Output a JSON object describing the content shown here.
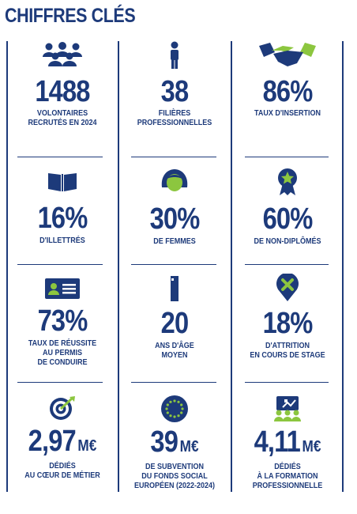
{
  "title": "CHIFFRES CLÉS",
  "colors": {
    "navy": "#1d3a7a",
    "green": "#8cc63f"
  },
  "stats": [
    {
      "value": "1488",
      "unit": "",
      "label": [
        "VOLONTAIRES",
        "RECRUTÉS EN 2024"
      ],
      "icon": "people-group-icon"
    },
    {
      "value": "38",
      "unit": "",
      "label": [
        "FILIÈRES",
        "PROFESSIONNELLES"
      ],
      "icon": "person-icon"
    },
    {
      "value": "86%",
      "unit": "",
      "label": [
        "TAUX D'INSERTION"
      ],
      "icon": "handshake-icon"
    },
    {
      "value": "16%",
      "unit": "",
      "label": [
        "D'ILLETTRÉS"
      ],
      "icon": "open-book-icon"
    },
    {
      "value": "30%",
      "unit": "",
      "label": [
        "DE FEMMES"
      ],
      "icon": "woman-icon"
    },
    {
      "value": "60%",
      "unit": "",
      "label": [
        "DE NON-DIPLÔMÉS"
      ],
      "icon": "badge-star-icon"
    },
    {
      "value": "73%",
      "unit": "",
      "label": [
        "TAUX DE RÉUSSITE",
        "AU PERMIS",
        "DE CONDUIRE"
      ],
      "icon": "id-card-icon"
    },
    {
      "value": "20",
      "unit": "",
      "label": [
        "ANS D'ÂGE",
        "MOYEN"
      ],
      "icon": "person-side-icon"
    },
    {
      "value": "18%",
      "unit": "",
      "label": [
        "D'ATTRITION",
        "EN COURS DE STAGE"
      ],
      "icon": "map-pin-x-icon"
    },
    {
      "value": "2,97",
      "unit": "M€",
      "label": [
        "DÉDIÉS",
        "AU CŒUR DE MÉTIER"
      ],
      "icon": "target-icon"
    },
    {
      "value": "39",
      "unit": "M€",
      "label": [
        "DE SUBVENTION",
        "DU FONDS SOCIAL",
        "EUROPÉEN (2022-2024)"
      ],
      "icon": "eu-flag-icon"
    },
    {
      "value": "4,11",
      "unit": "M€",
      "label": [
        "DÉDIÉS",
        "À LA FORMATION",
        "PROFESSIONNELLE"
      ],
      "icon": "training-icon"
    }
  ]
}
